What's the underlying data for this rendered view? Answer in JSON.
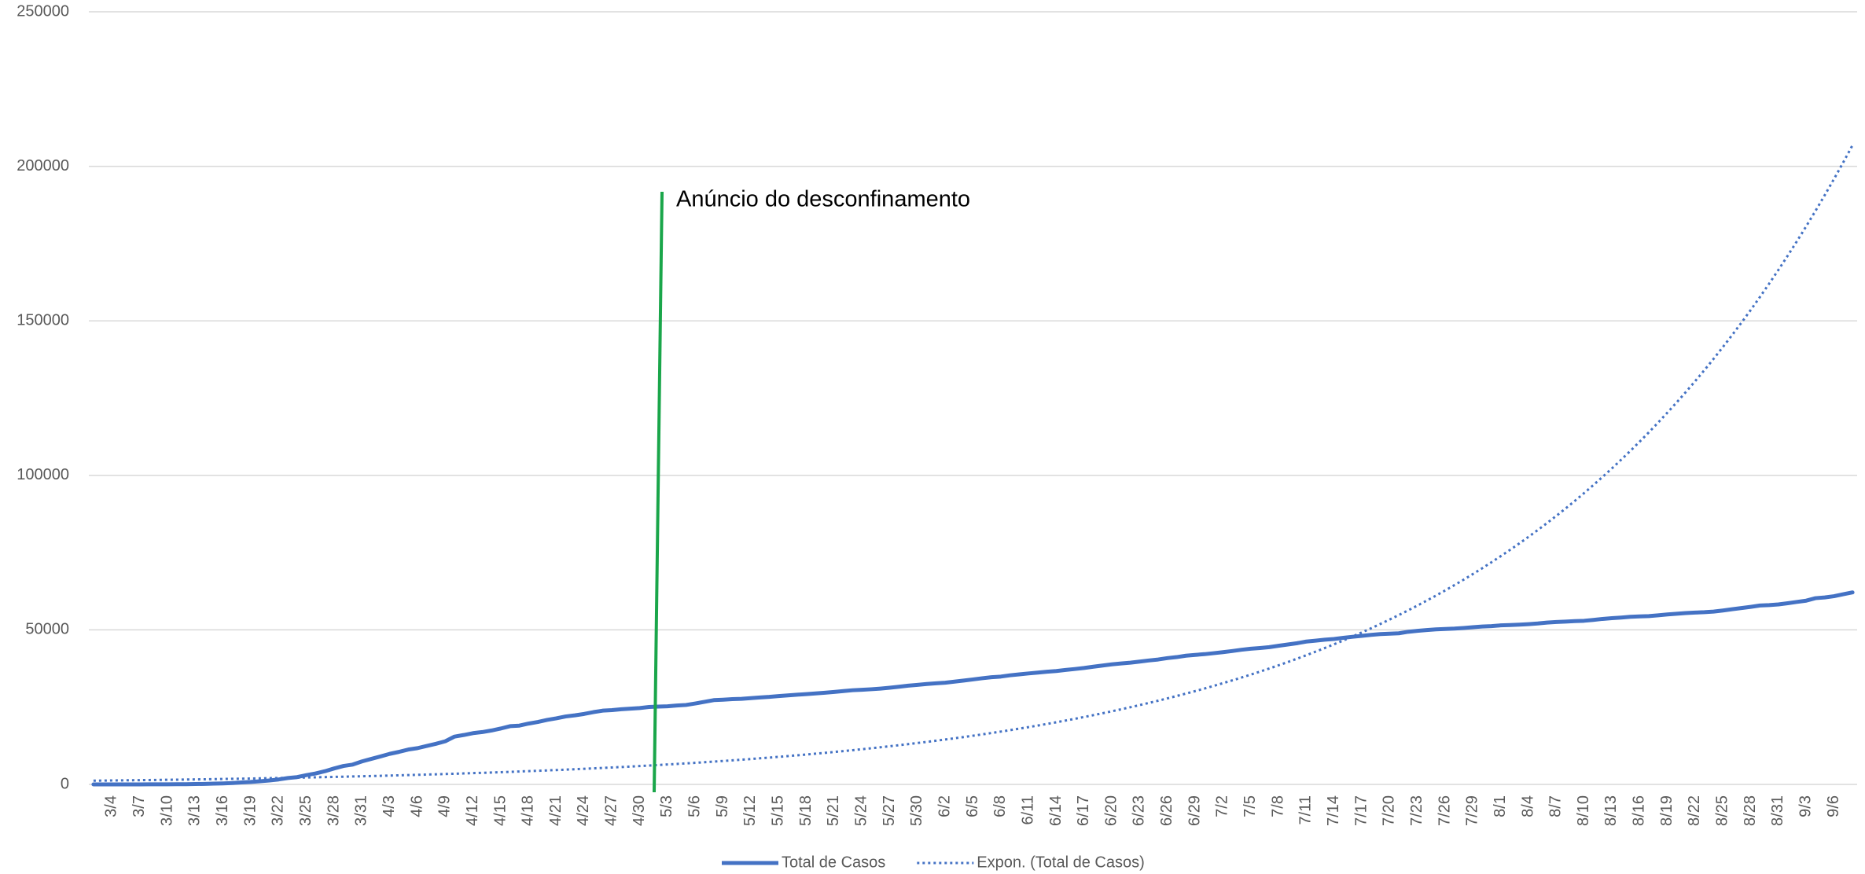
{
  "chart_data": {
    "type": "line",
    "annotation": "Anúncio do desconfinamento",
    "categories": [
      null,
      null,
      "3/4",
      null,
      null,
      "3/7",
      null,
      null,
      "3/10",
      null,
      null,
      "3/13",
      null,
      null,
      "3/16",
      null,
      null,
      "3/19",
      null,
      null,
      "3/22",
      null,
      null,
      "3/25",
      null,
      null,
      "3/28",
      null,
      null,
      "3/31",
      null,
      null,
      "4/3",
      null,
      null,
      "4/6",
      null,
      null,
      "4/9",
      null,
      null,
      "4/12",
      null,
      null,
      "4/15",
      null,
      null,
      "4/18",
      null,
      null,
      "4/21",
      null,
      null,
      "4/24",
      null,
      null,
      "4/27",
      null,
      null,
      "4/30",
      null,
      null,
      "5/3",
      null,
      null,
      "5/6",
      null,
      null,
      "5/9",
      null,
      null,
      "5/12",
      null,
      null,
      "5/15",
      null,
      null,
      "5/18",
      null,
      null,
      "5/21",
      null,
      null,
      "5/24",
      null,
      null,
      "5/27",
      null,
      null,
      "5/30",
      null,
      null,
      "6/2",
      null,
      null,
      "6/5",
      null,
      null,
      "6/8",
      null,
      null,
      "6/11",
      null,
      null,
      "6/14",
      null,
      null,
      "6/17",
      null,
      null,
      "6/20",
      null,
      null,
      "6/23",
      null,
      null,
      "6/26",
      null,
      null,
      "6/29",
      null,
      null,
      "7/2",
      null,
      null,
      "7/5",
      null,
      null,
      "7/8",
      null,
      null,
      "7/11",
      null,
      null,
      "7/14",
      null,
      null,
      "7/17",
      null,
      null,
      "7/20",
      null,
      null,
      "7/23",
      null,
      null,
      "7/26",
      null,
      null,
      "7/29",
      null,
      null,
      "8/1",
      null,
      null,
      "8/4",
      null,
      null,
      "8/7",
      null,
      null,
      "8/10",
      null,
      null,
      "8/13",
      null,
      null,
      "8/16",
      null,
      null,
      "8/19",
      null,
      null,
      "8/22",
      null,
      null,
      "8/25",
      null,
      null,
      "8/28",
      null,
      null,
      "8/31",
      null,
      null,
      "9/3",
      null,
      null,
      "9/6",
      null,
      null
    ],
    "series": [
      {
        "name": "Total de Casos",
        "color": "#4472c4",
        "dash": "solid",
        "values": [
          2,
          2,
          5,
          6,
          9,
          13,
          21,
          30,
          41,
          59,
          78,
          112,
          169,
          245,
          331,
          448,
          642,
          785,
          1020,
          1280,
          1600,
          2060,
          2362,
          2995,
          3544,
          4268,
          5170,
          5962,
          6408,
          7443,
          8251,
          9034,
          9886,
          10524,
          11278,
          11730,
          12442,
          13141,
          13956,
          15472,
          15987,
          16585,
          16934,
          17448,
          18091,
          18841,
          19022,
          19685,
          20206,
          20863,
          21379,
          21982,
          22353,
          22797,
          23392,
          23864,
          24027,
          24322,
          24505,
          24692,
          25045,
          25190,
          25282,
          25524,
          25702,
          26182,
          26715,
          27268,
          27406,
          27581,
          27679,
          27913,
          28132,
          28319,
          28583,
          28810,
          29036,
          29209,
          29432,
          29660,
          29912,
          30200,
          30471,
          30623,
          30788,
          31007,
          31292,
          31596,
          31946,
          32203,
          32500,
          32700,
          32895,
          33261,
          33592,
          33969,
          34351,
          34693,
          34885,
          35306,
          35600,
          35910,
          36180,
          36463,
          36690,
          37036,
          37336,
          37672,
          38089,
          38464,
          38841,
          39133,
          39392,
          39737,
          40104,
          40415,
          40866,
          41189,
          41646,
          41912,
          42141,
          42454,
          42782,
          43156,
          43569,
          43897,
          44129,
          44416,
          44859,
          45277,
          45679,
          46221,
          46512,
          46818,
          47051,
          47426,
          47765,
          48077,
          48390,
          48636,
          48771,
          48898,
          49379,
          49692,
          49955,
          50164,
          50299,
          50410,
          50613,
          50868,
          51072,
          51222,
          51463,
          51569,
          51681,
          51848,
          52061,
          52351,
          52537,
          52668,
          52825,
          52945,
          53223,
          53548,
          53783,
          53981,
          54234,
          54354,
          54448,
          54701,
          54992,
          55211,
          55452,
          55597,
          55720,
          55912,
          56274,
          56673,
          57074,
          57448,
          57882,
          58012,
          58243,
          58633,
          59051,
          59457,
          60258,
          60507,
          60895,
          61541,
          62126
        ]
      },
      {
        "name": "Expon. (Total de Casos)",
        "color": "#4472c4",
        "dash": "dotted",
        "values": [
          1200,
          1233,
          1267,
          1302,
          1337,
          1374,
          1412,
          1451,
          1491,
          1531,
          1574,
          1617,
          1662,
          1707,
          1754,
          1802,
          1852,
          1903,
          1955,
          2009,
          2064,
          2121,
          2179,
          2239,
          2300,
          2363,
          2428,
          2495,
          2564,
          2634,
          2706,
          2780,
          2857,
          2935,
          3016,
          3099,
          3184,
          3271,
          3361,
          3453,
          3548,
          3646,
          3746,
          3849,
          3954,
          4063,
          4175,
          4289,
          4407,
          4528,
          4653,
          4781,
          4912,
          5047,
          5186,
          5328,
          5475,
          5625,
          5780,
          5938,
          6101,
          6269,
          6441,
          6618,
          6800,
          6986,
          7178,
          7375,
          7578,
          7786,
          8000,
          8220,
          8446,
          8678,
          8916,
          9161,
          9413,
          9671,
          9937,
          10210,
          10491,
          10779,
          11075,
          11380,
          11692,
          12013,
          12344,
          12683,
          13031,
          13389,
          13757,
          14135,
          14523,
          14922,
          15332,
          15753,
          16186,
          16631,
          17088,
          17557,
          18040,
          18536,
          19045,
          19568,
          20106,
          20658,
          21226,
          21809,
          22408,
          23023,
          23656,
          24306,
          24973,
          25660,
          26365,
          27088,
          27834,
          28598,
          29383,
          30190,
          31020,
          31873,
          32748,
          33649,
          34572,
          35521,
          36498,
          37500,
          38530,
          39588,
          40677,
          41796,
          42943,
          44122,
          45335,
          46579,
          47861,
          49174,
          50525,
          51912,
          53340,
          54807,
          56311,
          57858,
          59448,
          61080,
          62760,
          64482,
          66254,
          68073,
          69945,
          71869,
          73841,
          75870,
          77954,
          80094,
          82297,
          84557,
          86879,
          89264,
          91720,
          94243,
          96829,
          99489,
          102222,
          105029,
          107918,
          110881,
          113926,
          117053,
          120274,
          123581,
          126973,
          130461,
          134045,
          137726,
          141516,
          145399,
          149392,
          153494,
          157716,
          162054,
          166501,
          171075,
          175774,
          180600,
          185569,
          190663,
          195899,
          201277,
          206815
        ]
      }
    ],
    "ylim": [
      0,
      250000
    ],
    "yticks": [
      0,
      50000,
      100000,
      150000,
      200000,
      250000
    ],
    "grid": true,
    "legend": "bottom"
  }
}
